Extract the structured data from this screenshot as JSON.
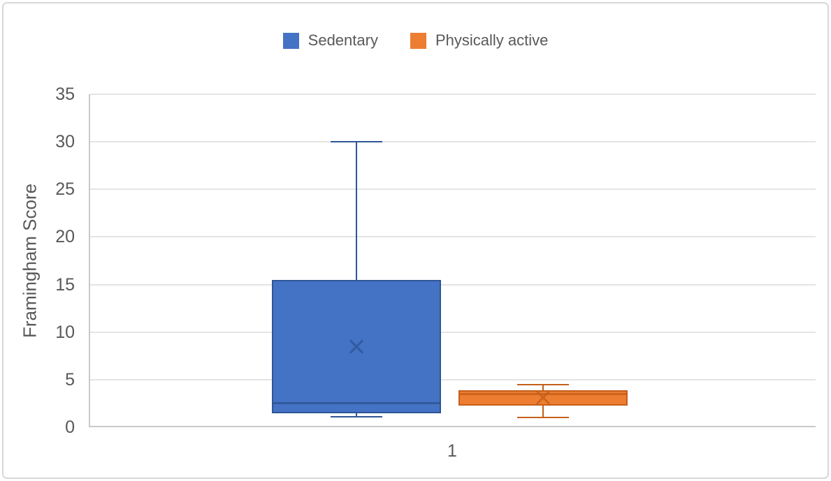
{
  "chart_data": {
    "type": "boxplot",
    "title": "",
    "categories": [
      "1"
    ],
    "xlabel": "",
    "ylabel": "Framingham Score",
    "ylim": [
      0,
      35
    ],
    "yticks": [
      0,
      5,
      10,
      15,
      20,
      25,
      30,
      35
    ],
    "grid": true,
    "legend_position": "top-center",
    "text_color": "#595959",
    "gridline_color": "#E4E4E4",
    "axis_line_color": "#C9C9C9",
    "frame_border_color": "#D8D8D8",
    "series": [
      {
        "name": "Sedentary",
        "fill": "#4472C4",
        "line": "#2F5597",
        "min": 1.1,
        "q1": 1.5,
        "median": 2.5,
        "q3": 15.5,
        "max": 30,
        "mean": 8.5
      },
      {
        "name": "Physically active",
        "fill": "#ED7D31",
        "line": "#C55F1A",
        "min": 1.0,
        "q1": 2.3,
        "median": 3.5,
        "q3": 3.9,
        "max": 4.5,
        "mean": 3.1
      }
    ]
  }
}
